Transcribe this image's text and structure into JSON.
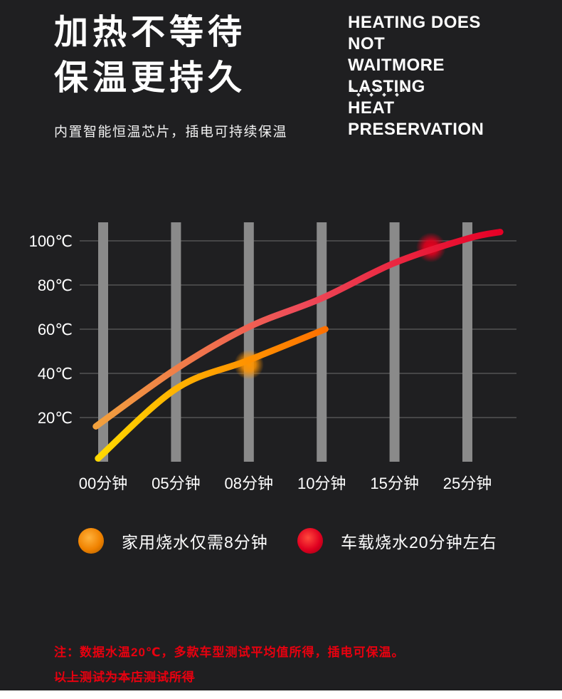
{
  "page": {
    "background": "#1f1f21",
    "bottom_strip_color": "#ffffff"
  },
  "header": {
    "title_line1": "加热不等待",
    "title_line2": "保温更持久",
    "subtitle_en": [
      "HEATING DOES NOT",
      "WAITMORE LASTING",
      "HEAT PRESERVATION"
    ],
    "description": "内置智能恒温芯片，插电可持续保温"
  },
  "icons": {
    "decoration": "dots-pattern-icon",
    "legend_home": "orange-glow-dot-icon",
    "legend_car": "red-glow-dot-icon"
  },
  "chart_data": {
    "type": "line",
    "title": "",
    "xlabel": "",
    "ylabel": "",
    "x_categories": [
      "00分钟",
      "05分钟",
      "08分钟",
      "10分钟",
      "15分钟",
      "25分钟"
    ],
    "y_ticks": [
      100,
      80,
      60,
      40,
      20
    ],
    "y_unit": "℃",
    "ylim": [
      0,
      110
    ],
    "grid": {
      "horizontal_lines": true,
      "vertical_bars": true,
      "line_color": "#545454",
      "bar_color": "#8a8a8a"
    },
    "legend_position": "below",
    "series": [
      {
        "name": "车载烧水20分钟左右",
        "gradient": [
          "#f2a13d",
          "#ee4b59",
          "#e60026"
        ],
        "stroke_width": 9,
        "marker": {
          "x": 4.5,
          "value": 97,
          "color": "#e8001e"
        },
        "points": [
          [
            -0.1,
            16
          ],
          [
            1,
            42
          ],
          [
            2,
            61
          ],
          [
            3,
            74
          ],
          [
            4,
            90
          ],
          [
            5,
            101
          ],
          [
            5.45,
            104
          ]
        ]
      },
      {
        "name": "家用烧水仅需8分钟",
        "gradient": [
          "#ffd900",
          "#ffa200",
          "#ff7000"
        ],
        "stroke_width": 9,
        "marker": {
          "x": 2,
          "value": 44,
          "color": "#ff9400"
        },
        "points": [
          [
            -0.07,
            1.5
          ],
          [
            1,
            33
          ],
          [
            2,
            46
          ],
          [
            3.05,
            60
          ]
        ]
      }
    ]
  },
  "legend": [
    {
      "label": "家用烧水仅需8分钟",
      "color": "#f08200",
      "highlight": "#ffb23c",
      "ring": "#a35a00"
    },
    {
      "label": "车载烧水20分钟左右",
      "color": "#e00020",
      "highlight": "#ff4a3c",
      "ring": "#8c000f"
    }
  ],
  "footnote": {
    "color": "#e8000f",
    "line1": "注：数据水温20℃，多款车型测试平均值所得，插电可保温。",
    "line2": "以上测试为本店测试所得"
  }
}
